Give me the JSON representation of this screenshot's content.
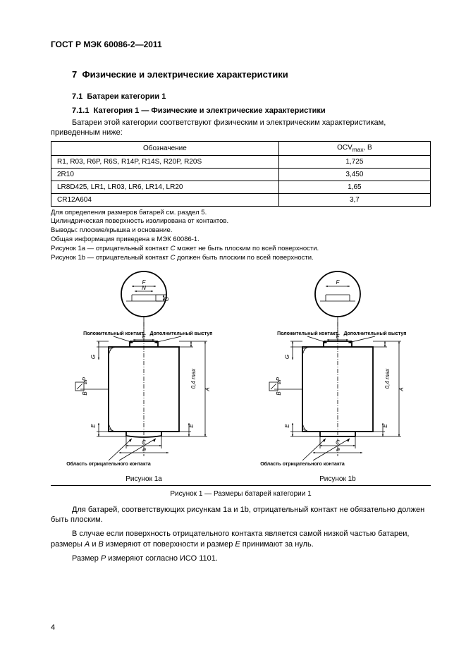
{
  "document": {
    "standard_code": "ГОСТ Р МЭК 60086-2—2011",
    "section_number": "7",
    "section_title": "Физические и электрические характеристики",
    "subsection_number": "7.1",
    "subsection_title": "Батареи категории 1",
    "subsubsection_number": "7.1.1",
    "subsubsection_title": "Категория 1 — Физические и электрические характеристики",
    "intro_para": "Батареи этой категории соответствуют физическим и электрическим характеристикам, приведенным ниже:",
    "page_number": "4"
  },
  "table": {
    "col1_header": "Обозначение",
    "col2_header": "OCV",
    "col2_header_sub": "max",
    "col2_header_unit": ", В",
    "rows": [
      {
        "label": "R1, R03, R6P, R6S, R14P, R14S, R20P, R20S",
        "value": "1,725"
      },
      {
        "label": "2R10",
        "value": "3,450"
      },
      {
        "label": "LR8D425, LR1, LR03, LR6, LR14, LR20",
        "value": "1,65"
      },
      {
        "label": "CR12A604",
        "value": "3,7"
      }
    ],
    "col_widths": [
      "60%",
      "40%"
    ],
    "border_color": "#000000",
    "font_size": 10
  },
  "notes": {
    "lines": [
      "Для определения размеров батарей см. раздел 5.",
      "Цилиндрическая поверхность изолирована от контактов.",
      "Выводы: плоские/крышка и основание.",
      "Общая информация приведена в МЭК 60086-1."
    ],
    "line_1a_prefix": "Рисунок 1a — отрицательный контакт ",
    "line_1a_ital": "C",
    "line_1a_suffix": " может не быть плоским по всей поверхности.",
    "line_1b_prefix": "Рисунок 1b — отрицательный контакт ",
    "line_1b_ital": "C",
    "line_1b_suffix": " должен быть плоским по всей поверхности."
  },
  "figure": {
    "caption_a": "Рисунок 1a",
    "caption_b": "Рисунок 1b",
    "main_caption": "Рисунок 1 — Размеры батарей категории 1",
    "label_pos_contact": "Положительный контакт",
    "label_protrusion": "Дополнительный выступ",
    "label_neg_area": "Область отрицательного контакта",
    "dim_A": "A",
    "dim_B": "B",
    "dim_C": "C",
    "dim_E": "E",
    "dim_F": "F",
    "dim_G": "G",
    "dim_N": "N",
    "dim_P": "⌀P",
    "dim_04max": "0,4 max",
    "dim_diam": "⌀",
    "colors": {
      "stroke": "#000000",
      "fill_none": "none",
      "background": "#ffffff"
    },
    "line_width_thin": 0.8,
    "line_width_thick": 1.8,
    "font_size_label": 7,
    "font_size_dim": 8
  },
  "bottom_paras": {
    "p1_prefix": "Для батарей, соответствующих рисункам 1a и 1b, отрицательный контакт не обязательно должен быть плоским.",
    "p2_prefix": "В случае если поверхность отрицательного контакта является самой низкой частью батареи, размеры ",
    "p2_a": "A",
    "p2_mid": " и ",
    "p2_b": "B",
    "p2_mid2": " измеряют от поверхности и размер ",
    "p2_e": "E",
    "p2_suffix": " принимают за нуль.",
    "p3_prefix": "Размер ",
    "p3_p": "P",
    "p3_suffix": " измеряют согласно ИСО 1101."
  }
}
